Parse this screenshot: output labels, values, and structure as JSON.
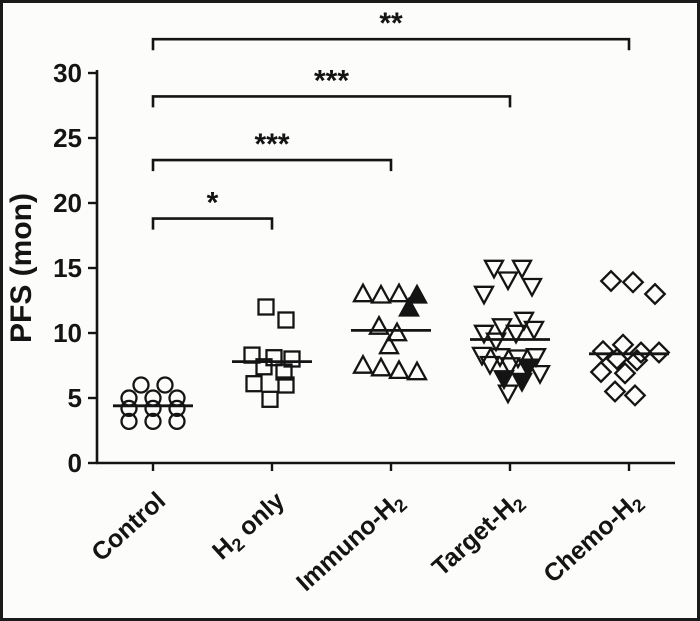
{
  "style": {
    "ink": "#141414",
    "background": "#fcfcfa",
    "frame_border": "#1a1a1a"
  },
  "chart_data": {
    "type": "scatter",
    "title": "",
    "xlabel": "",
    "ylabel": "PFS (mon)",
    "ylim": [
      0,
      30
    ],
    "yticks": [
      0,
      5,
      10,
      15,
      20,
      25,
      30
    ],
    "grid": false,
    "legend": false,
    "categories": [
      "Control",
      "H₂ only",
      "Immuno-H₂",
      "Target-H₂",
      "Chemo-H₂"
    ],
    "series": [
      {
        "name": "Control",
        "marker": "circle",
        "median": 4.4,
        "points": [
          [
            6,
            -12
          ],
          [
            6,
            12
          ],
          [
            5,
            -24
          ],
          [
            5,
            0
          ],
          [
            5,
            24
          ],
          [
            4.2,
            -24
          ],
          [
            4.2,
            0
          ],
          [
            4.2,
            24
          ],
          [
            3.2,
            -24
          ],
          [
            3.2,
            0
          ],
          [
            3.2,
            24
          ]
        ]
      },
      {
        "name": "H₂ only",
        "marker": "square",
        "median": 7.8,
        "points": [
          [
            12,
            -6
          ],
          [
            11,
            14
          ],
          [
            8.3,
            -20
          ],
          [
            8.1,
            2
          ],
          [
            8,
            20
          ],
          [
            7.4,
            -8
          ],
          [
            7,
            12
          ],
          [
            6.1,
            -18
          ],
          [
            6,
            14
          ],
          [
            4.9,
            -2
          ]
        ]
      },
      {
        "name": "Immuno-H₂",
        "marker": "triangle-up",
        "median": 10.2,
        "points": [
          [
            13,
            -28
          ],
          [
            12.9,
            -10
          ],
          [
            13,
            8
          ],
          [
            12.9,
            26,
            1
          ],
          [
            11.9,
            18,
            1
          ],
          [
            10.5,
            -12
          ],
          [
            10,
            6
          ],
          [
            9,
            -2
          ],
          [
            7.5,
            -28
          ],
          [
            7.3,
            -10
          ],
          [
            7.1,
            8
          ],
          [
            7,
            26
          ]
        ]
      },
      {
        "name": "Target-H₂",
        "marker": "triangle-down",
        "median": 9.5,
        "points": [
          [
            15,
            -16
          ],
          [
            15,
            12
          ],
          [
            14.1,
            -2
          ],
          [
            13.6,
            22
          ],
          [
            13,
            -26
          ],
          [
            11,
            14
          ],
          [
            10.5,
            -8
          ],
          [
            10.3,
            24
          ],
          [
            10,
            -26
          ],
          [
            10,
            6
          ],
          [
            9.4,
            -14
          ],
          [
            8.3,
            -28
          ],
          [
            8.2,
            -10
          ],
          [
            8.1,
            8
          ],
          [
            8.2,
            26
          ],
          [
            7.6,
            -20
          ],
          [
            7.5,
            0
          ],
          [
            7.4,
            18,
            1
          ],
          [
            6.9,
            30
          ],
          [
            6.5,
            -6,
            1
          ],
          [
            6.3,
            12,
            1
          ],
          [
            5.4,
            -2
          ]
        ]
      },
      {
        "name": "Chemo-H₂",
        "marker": "diamond",
        "median": 8.4,
        "points": [
          [
            14,
            -18
          ],
          [
            13.9,
            4
          ],
          [
            13,
            26
          ],
          [
            9.1,
            -6
          ],
          [
            8.6,
            -26
          ],
          [
            8.5,
            12
          ],
          [
            8.5,
            30
          ],
          [
            8,
            -12
          ],
          [
            7.9,
            8
          ],
          [
            7,
            -28
          ],
          [
            6.9,
            -4
          ],
          [
            5.5,
            -14
          ],
          [
            5.2,
            6
          ]
        ]
      }
    ],
    "comparisons": [
      {
        "from": 0,
        "to": 1,
        "label": "*",
        "y": 18.8
      },
      {
        "from": 0,
        "to": 2,
        "label": "***",
        "y": 23.3
      },
      {
        "from": 0,
        "to": 3,
        "label": "***",
        "y": 28.2
      },
      {
        "from": 0,
        "to": 4,
        "label": "**",
        "y": 32.6
      }
    ]
  }
}
